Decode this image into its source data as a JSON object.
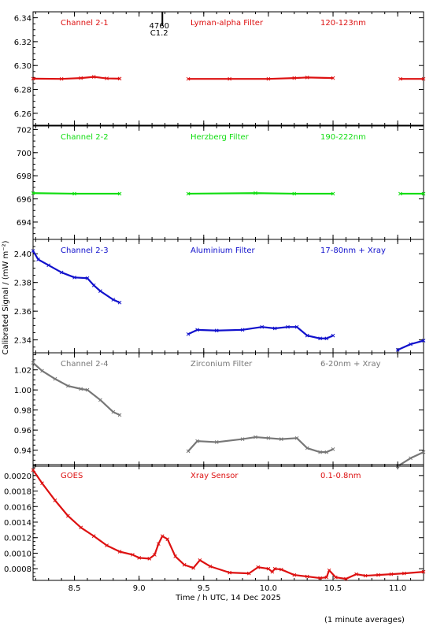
{
  "chart_data": [
    {
      "type": "scatter",
      "channel": "Channel 2-1",
      "filter": "Lyman-alpha Filter",
      "band": "120-123nm",
      "color": "#dd1111",
      "ylim": [
        6.25,
        6.345
      ],
      "yticks": [
        6.26,
        6.28,
        6.3,
        6.32,
        6.34
      ],
      "ytick_labels": [
        "6.26",
        "6.28",
        "6.30",
        "6.32",
        "6.34"
      ],
      "flare_marker": {
        "x": 9.18,
        "labels": [
          "4760",
          "C1.2"
        ]
      },
      "series": [
        {
          "points": [
            [
              8.18,
              6.289
            ],
            [
              8.4,
              6.2888
            ],
            [
              8.55,
              6.2895
            ],
            [
              8.65,
              6.2905
            ],
            [
              8.75,
              6.2892
            ],
            [
              8.85,
              6.289
            ]
          ]
        },
        {
          "points": [
            [
              9.38,
              6.2888
            ],
            [
              9.7,
              6.2888
            ],
            [
              10.0,
              6.2888
            ],
            [
              10.2,
              6.2895
            ],
            [
              10.3,
              6.29
            ],
            [
              10.5,
              6.2895
            ]
          ]
        },
        {
          "points": [
            [
              11.02,
              6.2888
            ],
            [
              11.2,
              6.2888
            ]
          ]
        }
      ]
    },
    {
      "type": "scatter",
      "channel": "Channel 2-2",
      "filter": "Herzberg Filter",
      "band": "190-222nm",
      "color": "#11dd11",
      "ylim": [
        692.5,
        702.3
      ],
      "yticks": [
        694,
        696,
        698,
        700,
        702
      ],
      "ytick_labels": [
        "694",
        "696",
        "698",
        "700",
        "702"
      ],
      "series": [
        {
          "points": [
            [
              8.18,
              696.5
            ],
            [
              8.5,
              696.45
            ],
            [
              8.85,
              696.45
            ]
          ]
        },
        {
          "points": [
            [
              9.38,
              696.45
            ],
            [
              9.9,
              696.5
            ],
            [
              10.2,
              696.45
            ],
            [
              10.5,
              696.45
            ]
          ]
        },
        {
          "points": [
            [
              11.02,
              696.45
            ],
            [
              11.2,
              696.45
            ]
          ]
        }
      ]
    },
    {
      "type": "scatter",
      "channel": "Channel 2-3",
      "filter": "Aluminium Filter",
      "band": "17-80nm + Xray",
      "color": "#1111cc",
      "ylim": [
        2.331,
        2.41
      ],
      "yticks": [
        2.34,
        2.36,
        2.38,
        2.4
      ],
      "ytick_labels": [
        "2.34",
        "2.36",
        "2.38",
        "2.40"
      ],
      "series": [
        {
          "points": [
            [
              8.18,
              2.402
            ],
            [
              8.22,
              2.396
            ],
            [
              8.3,
              2.392
            ],
            [
              8.4,
              2.387
            ],
            [
              8.5,
              2.3835
            ],
            [
              8.6,
              2.383
            ],
            [
              8.65,
              2.378
            ],
            [
              8.7,
              2.374
            ],
            [
              8.8,
              2.368
            ],
            [
              8.85,
              2.366
            ]
          ]
        },
        {
          "points": [
            [
              9.38,
              2.344
            ],
            [
              9.45,
              2.347
            ],
            [
              9.6,
              2.3465
            ],
            [
              9.8,
              2.347
            ],
            [
              9.95,
              2.349
            ],
            [
              10.05,
              2.348
            ],
            [
              10.15,
              2.349
            ],
            [
              10.22,
              2.349
            ],
            [
              10.3,
              2.343
            ],
            [
              10.4,
              2.341
            ],
            [
              10.45,
              2.341
            ],
            [
              10.5,
              2.343
            ]
          ]
        },
        {
          "points": [
            [
              11.0,
              2.333
            ],
            [
              11.1,
              2.337
            ],
            [
              11.2,
              2.3395
            ]
          ]
        }
      ]
    },
    {
      "type": "scatter",
      "channel": "Channel 2-4",
      "filter": "Zirconium Filter",
      "band": "6-20nm + Xray",
      "color": "#777777",
      "ylim": [
        0.924,
        1.037
      ],
      "yticks": [
        0.94,
        0.96,
        0.98,
        1.0,
        1.02
      ],
      "ytick_labels": [
        "0.94",
        "0.96",
        "0.98",
        "1.00",
        "1.02"
      ],
      "series": [
        {
          "points": [
            [
              8.18,
              1.027
            ],
            [
              8.25,
              1.019
            ],
            [
              8.35,
              1.011
            ],
            [
              8.45,
              1.004
            ],
            [
              8.55,
              1.001
            ],
            [
              8.6,
              1.0
            ],
            [
              8.7,
              0.99
            ],
            [
              8.8,
              0.978
            ],
            [
              8.85,
              0.975
            ]
          ]
        },
        {
          "points": [
            [
              9.38,
              0.939
            ],
            [
              9.45,
              0.949
            ],
            [
              9.6,
              0.948
            ],
            [
              9.8,
              0.951
            ],
            [
              9.9,
              0.953
            ],
            [
              10.0,
              0.952
            ],
            [
              10.1,
              0.951
            ],
            [
              10.22,
              0.952
            ],
            [
              10.3,
              0.942
            ],
            [
              10.4,
              0.938
            ],
            [
              10.45,
              0.938
            ],
            [
              10.5,
              0.941
            ]
          ]
        },
        {
          "points": [
            [
              11.0,
              0.924
            ],
            [
              11.1,
              0.932
            ],
            [
              11.2,
              0.938
            ]
          ]
        }
      ]
    },
    {
      "type": "scatter",
      "channel": "GOES",
      "filter": "Xray Sensor",
      "band": "0.1-0.8nm",
      "color": "#dd1111",
      "ylim": [
        0.00065,
        0.00214
      ],
      "yticks": [
        0.0008,
        0.001,
        0.0012,
        0.0014,
        0.0016,
        0.0018,
        0.002
      ],
      "ytick_labels": [
        "0.0008",
        "0.0010",
        "0.0012",
        "0.0014",
        "0.0016",
        "0.0018",
        "0.0020"
      ],
      "series": [
        {
          "points": [
            [
              8.18,
              0.00207
            ],
            [
              8.25,
              0.0019
            ],
            [
              8.35,
              0.00168
            ],
            [
              8.45,
              0.00148
            ],
            [
              8.55,
              0.00133
            ],
            [
              8.65,
              0.00122
            ],
            [
              8.75,
              0.0011
            ],
            [
              8.85,
              0.00102
            ],
            [
              8.95,
              0.00098
            ],
            [
              9.0,
              0.00094
            ],
            [
              9.08,
              0.00093
            ],
            [
              9.12,
              0.00098
            ],
            [
              9.15,
              0.00112
            ],
            [
              9.18,
              0.00122
            ],
            [
              9.22,
              0.00118
            ],
            [
              9.28,
              0.00096
            ],
            [
              9.35,
              0.00085
            ],
            [
              9.42,
              0.00081
            ],
            [
              9.47,
              0.00091
            ],
            [
              9.55,
              0.00083
            ],
            [
              9.7,
              0.00075
            ],
            [
              9.85,
              0.00074
            ],
            [
              9.92,
              0.00082
            ],
            [
              10.0,
              0.0008
            ],
            [
              10.03,
              0.00076
            ],
            [
              10.05,
              0.0008
            ],
            [
              10.1,
              0.00079
            ],
            [
              10.2,
              0.00072
            ],
            [
              10.3,
              0.0007
            ],
            [
              10.4,
              0.00068
            ],
            [
              10.45,
              0.00069
            ],
            [
              10.47,
              0.00078
            ],
            [
              10.52,
              0.00069
            ],
            [
              10.6,
              0.00067
            ],
            [
              10.68,
              0.00073
            ],
            [
              10.75,
              0.00071
            ],
            [
              10.85,
              0.00072
            ],
            [
              10.95,
              0.00073
            ],
            [
              11.05,
              0.00074
            ],
            [
              11.2,
              0.00076
            ]
          ]
        }
      ]
    }
  ],
  "xaxis": {
    "xlim": [
      8.18,
      11.2
    ],
    "ticks": [
      8.5,
      9.0,
      9.5,
      10.0,
      10.5,
      11.0
    ],
    "tick_labels": [
      "8.5",
      "9.0",
      "9.5",
      "10.0",
      "10.5",
      "11.0"
    ],
    "label": "Time / h UTC, 14 Dec 2025"
  },
  "ylabel": "Calibrated Signal / (mW m⁻²)",
  "footnote": "(1 minute averages)"
}
